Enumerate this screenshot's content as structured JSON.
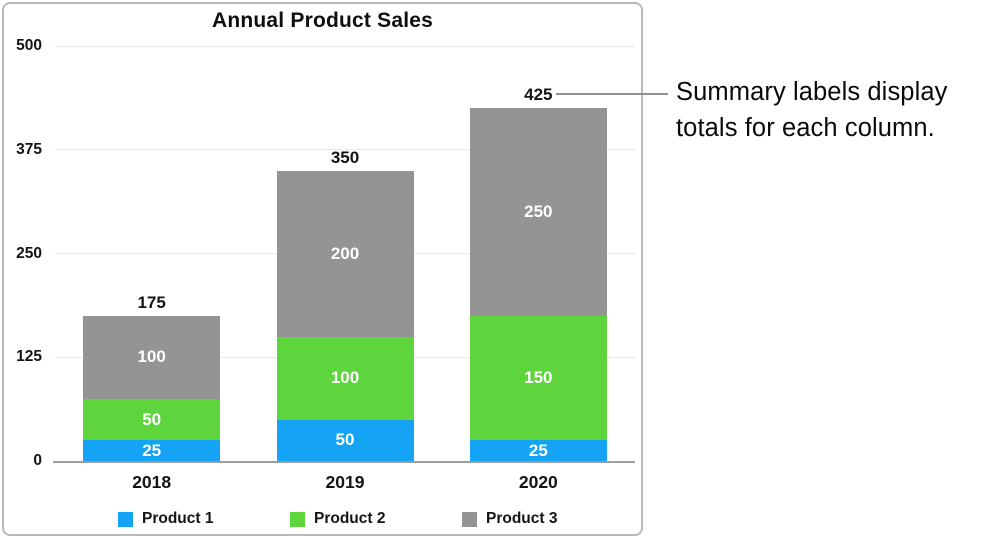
{
  "callout": {
    "text_lines": [
      "Summary labels display",
      "totals for each column."
    ]
  },
  "chart_data": {
    "type": "bar",
    "stacked": true,
    "title": "Annual Product Sales",
    "categories": [
      "2018",
      "2019",
      "2020"
    ],
    "series": [
      {
        "name": "Product 1",
        "color": "#14a3f5",
        "values": [
          25,
          50,
          25
        ]
      },
      {
        "name": "Product 2",
        "color": "#5ed43d",
        "values": [
          50,
          100,
          150
        ]
      },
      {
        "name": "Product 3",
        "color": "#949494",
        "values": [
          100,
          200,
          250
        ]
      }
    ],
    "totals": [
      175,
      350,
      425
    ],
    "y_ticks": [
      0,
      125,
      250,
      375,
      500
    ],
    "ylim": [
      0,
      500
    ],
    "grid": true,
    "legend_position": "bottom",
    "annotation_target_total": 425
  }
}
